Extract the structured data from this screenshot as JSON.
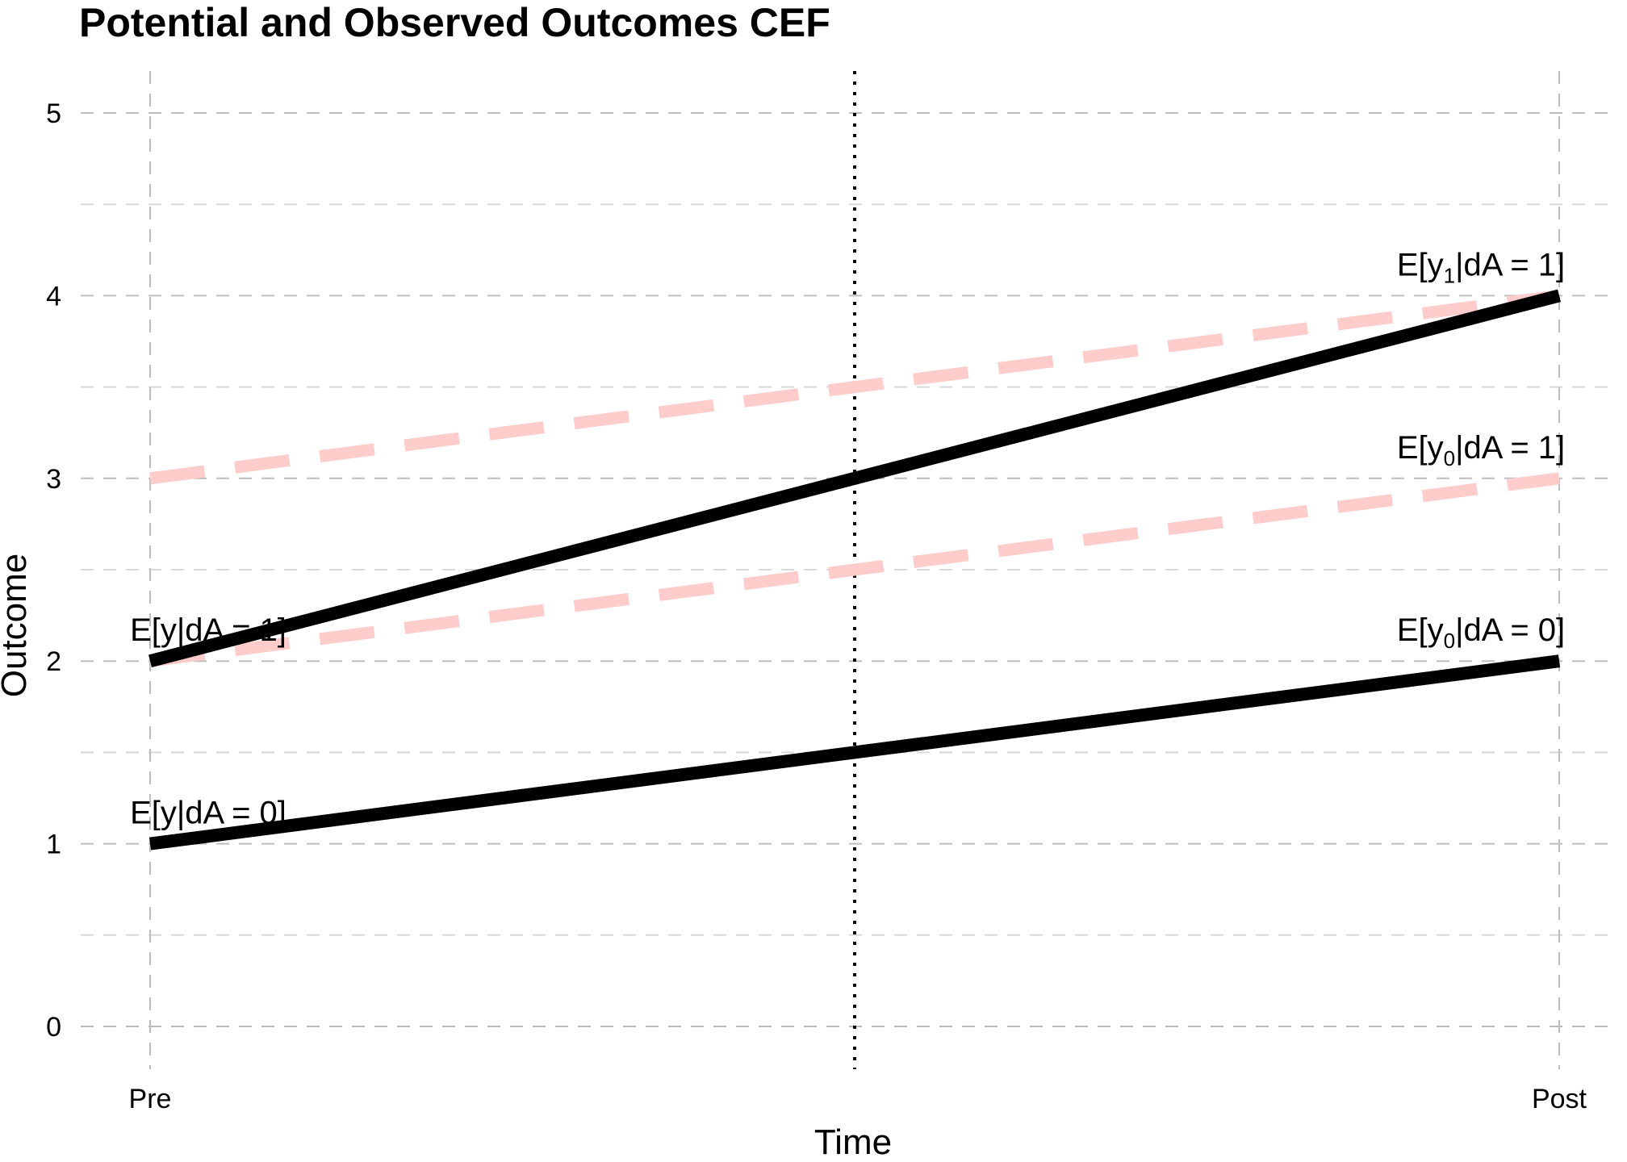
{
  "chart_data": {
    "type": "line",
    "title": "Potential and Observed Outcomes CEF",
    "xlabel": "Time",
    "ylabel": "Outcome",
    "categories": [
      "Pre",
      "Post"
    ],
    "ylim": [
      0,
      5
    ],
    "yticks": [
      0,
      1,
      2,
      3,
      4,
      5
    ],
    "grid": true,
    "treatment_line": {
      "style": "dotted",
      "x": 0.5
    },
    "series": [
      {
        "id": "y1_treated",
        "label_base": "E[y",
        "label_sub": "1",
        "label_tail": "|dA = 1]",
        "values": [
          3,
          4
        ],
        "style": "dashed",
        "color": "#ffcccc",
        "label_at": "end"
      },
      {
        "id": "y0_treated",
        "label_base": "E[y",
        "label_sub": "0",
        "label_tail": "|dA = 1]",
        "values": [
          2,
          3
        ],
        "style": "dashed",
        "color": "#ffcccc",
        "label_at": "end"
      },
      {
        "id": "y_treated",
        "label_base": "E[y",
        "label_sub": "",
        "label_tail": "|dA = 1]",
        "values": [
          2,
          4
        ],
        "style": "solid",
        "color": "#000000",
        "label_at": "start"
      },
      {
        "id": "y_control",
        "label_base": "E[y",
        "label_sub": "",
        "label_tail": "|dA = 0]",
        "values": [
          1,
          2
        ],
        "style": "solid",
        "color": "#000000",
        "label_at": "start"
      },
      {
        "id": "y0_control",
        "label_base": "E[y",
        "label_sub": "0",
        "label_tail": "|dA = 0]",
        "values": [
          1,
          2
        ],
        "style": "none",
        "color": "#000000",
        "label_at": "end"
      }
    ]
  }
}
